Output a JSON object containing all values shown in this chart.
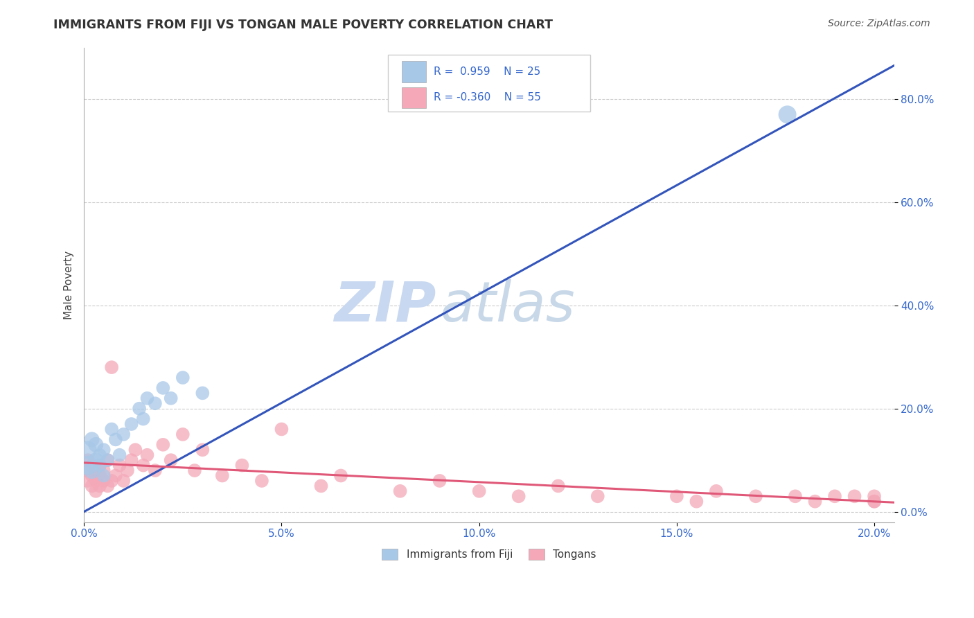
{
  "title": "IMMIGRANTS FROM FIJI VS TONGAN MALE POVERTY CORRELATION CHART",
  "source": "Source: ZipAtlas.com",
  "ylabel": "Male Poverty",
  "fiji_R": 0.959,
  "fiji_N": 25,
  "tongan_R": -0.36,
  "tongan_N": 55,
  "fiji_color": "#a8c8e8",
  "fiji_line_color": "#3355bb",
  "tongan_color": "#f4a8b8",
  "tongan_line_color": "#e05878",
  "watermark_zip_color": "#c8d8f0",
  "watermark_atlas_color": "#c8d8e8",
  "background_color": "#ffffff",
  "xlim": [
    0.0,
    0.205
  ],
  "ylim": [
    -0.02,
    0.9
  ],
  "xticks": [
    0.0,
    0.05,
    0.1,
    0.15,
    0.2
  ],
  "yticks": [
    0.0,
    0.2,
    0.4,
    0.6,
    0.8
  ],
  "fiji_line_x": [
    0.0,
    0.205
  ],
  "fiji_line_y": [
    0.0,
    0.865
  ],
  "tongan_line_x": [
    0.0,
    0.205
  ],
  "tongan_line_y": [
    0.095,
    0.018
  ],
  "fiji_scatter": {
    "x": [
      0.001,
      0.001,
      0.002,
      0.002,
      0.003,
      0.003,
      0.004,
      0.004,
      0.005,
      0.005,
      0.006,
      0.007,
      0.008,
      0.009,
      0.01,
      0.012,
      0.014,
      0.015,
      0.016,
      0.018,
      0.02,
      0.022,
      0.025,
      0.03,
      0.178
    ],
    "y": [
      0.09,
      0.12,
      0.08,
      0.14,
      0.1,
      0.13,
      0.09,
      0.11,
      0.07,
      0.12,
      0.1,
      0.16,
      0.14,
      0.11,
      0.15,
      0.17,
      0.2,
      0.18,
      0.22,
      0.21,
      0.24,
      0.22,
      0.26,
      0.23,
      0.77
    ],
    "size": [
      40,
      35,
      30,
      25,
      25,
      25,
      20,
      20,
      20,
      20,
      20,
      20,
      20,
      20,
      20,
      20,
      20,
      20,
      20,
      20,
      20,
      20,
      20,
      20,
      35
    ]
  },
  "tongan_scatter": {
    "x": [
      0.001,
      0.001,
      0.001,
      0.002,
      0.002,
      0.002,
      0.003,
      0.003,
      0.003,
      0.004,
      0.004,
      0.004,
      0.005,
      0.005,
      0.006,
      0.006,
      0.007,
      0.007,
      0.008,
      0.009,
      0.01,
      0.011,
      0.012,
      0.013,
      0.015,
      0.016,
      0.018,
      0.02,
      0.022,
      0.025,
      0.028,
      0.03,
      0.035,
      0.04,
      0.045,
      0.05,
      0.06,
      0.065,
      0.08,
      0.09,
      0.1,
      0.11,
      0.12,
      0.13,
      0.15,
      0.155,
      0.16,
      0.17,
      0.18,
      0.185,
      0.19,
      0.195,
      0.2,
      0.2,
      0.2
    ],
    "y": [
      0.06,
      0.08,
      0.1,
      0.05,
      0.07,
      0.09,
      0.04,
      0.06,
      0.08,
      0.05,
      0.07,
      0.09,
      0.06,
      0.08,
      0.05,
      0.1,
      0.06,
      0.28,
      0.07,
      0.09,
      0.06,
      0.08,
      0.1,
      0.12,
      0.09,
      0.11,
      0.08,
      0.13,
      0.1,
      0.15,
      0.08,
      0.12,
      0.07,
      0.09,
      0.06,
      0.16,
      0.05,
      0.07,
      0.04,
      0.06,
      0.04,
      0.03,
      0.05,
      0.03,
      0.03,
      0.02,
      0.04,
      0.03,
      0.03,
      0.02,
      0.03,
      0.03,
      0.02,
      0.03,
      0.02
    ],
    "size": [
      20,
      20,
      20,
      20,
      20,
      20,
      20,
      20,
      20,
      20,
      20,
      20,
      20,
      20,
      20,
      20,
      20,
      20,
      20,
      20,
      20,
      20,
      20,
      20,
      20,
      20,
      20,
      20,
      20,
      20,
      20,
      20,
      20,
      20,
      20,
      20,
      20,
      20,
      20,
      20,
      20,
      20,
      20,
      20,
      20,
      20,
      20,
      20,
      20,
      20,
      20,
      20,
      20,
      20,
      20
    ]
  }
}
